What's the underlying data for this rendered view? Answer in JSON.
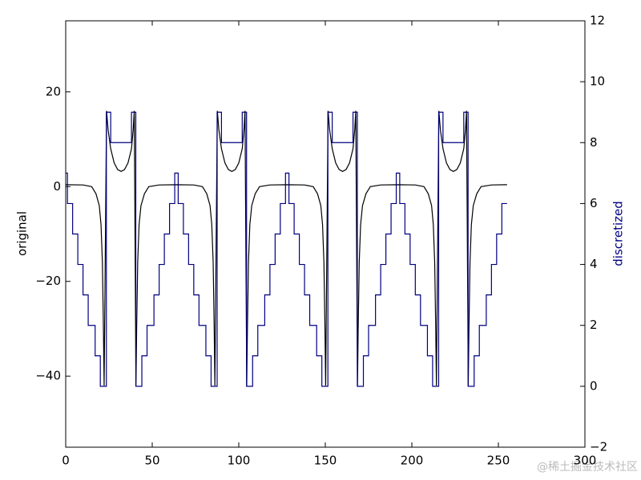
{
  "chart_data": {
    "type": "line",
    "y_label": "original",
    "y2_label": "discretized",
    "y2_label_color": "#000080",
    "xlim": [
      0,
      300
    ],
    "xticks": [
      0,
      50,
      100,
      150,
      200,
      250,
      300
    ],
    "ylim": [
      -55,
      35
    ],
    "yticks": [
      {
        "value": -40,
        "label": "−40"
      },
      {
        "value": -20,
        "label": "−20"
      },
      0,
      20
    ],
    "y2lim": [
      -2,
      12
    ],
    "y2ticks": [
      {
        "value": -2,
        "label": "−2"
      },
      0,
      2,
      4,
      6,
      8,
      10,
      12
    ],
    "watermark": "@稀土掘金技术社区",
    "series": [
      {
        "color": "#000000",
        "x": [
          0,
          10,
          15,
          17.5,
          19.4,
          20.4,
          21.2,
          21.8,
          22.2,
          23.6,
          24.5,
          26,
          28,
          30,
          32,
          34,
          36,
          38,
          39,
          39.6,
          40.6,
          41,
          41.6,
          42.4,
          43.5,
          45.5,
          48,
          54,
          64,
          74,
          79,
          81.5,
          83.4,
          84.4,
          85.2,
          85.8,
          86.2,
          87.6,
          88.5,
          90,
          92,
          94,
          96,
          98,
          100,
          102,
          103,
          103.6,
          104.6,
          105,
          105.6,
          106.4,
          107.5,
          109.5,
          112,
          118,
          128,
          138,
          143,
          145.5,
          147.4,
          148.4,
          149.2,
          149.8,
          150.2,
          151.6,
          152.5,
          154,
          156,
          158,
          160,
          162,
          164,
          166,
          167,
          167.6,
          168.6,
          169,
          169.6,
          170.4,
          171.5,
          173.5,
          176,
          182,
          192,
          202,
          207,
          209.5,
          211.4,
          212.4,
          213.2,
          213.8,
          214.2,
          215.6,
          216.5,
          218,
          220,
          222,
          224,
          226,
          228,
          230,
          231,
          231.6,
          232.6,
          233,
          233.6,
          234.4,
          235.5,
          237.5,
          240,
          246,
          255
        ],
        "values": [
          0.4,
          0.35,
          0,
          -1.5,
          -4,
          -8,
          -16,
          -30,
          -42,
          16,
          12,
          8,
          5,
          3.6,
          3.2,
          3.6,
          5,
          8,
          12,
          16,
          -42,
          -30,
          -16,
          -8,
          -4,
          -1.5,
          0,
          0.35,
          0.4,
          0.35,
          0,
          -1.5,
          -4,
          -8,
          -16,
          -30,
          -42,
          16,
          12,
          8,
          5,
          3.6,
          3.2,
          3.6,
          5,
          8,
          12,
          16,
          -42,
          -30,
          -16,
          -8,
          -4,
          -1.5,
          0,
          0.35,
          0.4,
          0.35,
          0,
          -1.5,
          -4,
          -8,
          -16,
          -30,
          -42,
          16,
          12,
          8,
          5,
          3.6,
          3.2,
          3.6,
          5,
          8,
          12,
          16,
          -42,
          -30,
          -16,
          -8,
          -4,
          -1.5,
          0,
          0.35,
          0.4,
          0.35,
          0,
          -1.5,
          -4,
          -8,
          -16,
          -30,
          -42,
          16,
          12,
          8,
          5,
          3.6,
          3.2,
          3.6,
          5,
          8,
          12,
          16,
          -42,
          -30,
          -16,
          -8,
          -4,
          -1.5,
          0,
          0.35,
          0.4
        ]
      },
      {
        "color": "#000080",
        "axis": "y2",
        "drawstyle": "steps-post",
        "x": [
          0,
          1,
          4,
          7,
          10,
          13,
          17,
          20,
          23.5,
          26,
          38,
          40.5,
          44,
          47,
          51,
          54,
          57,
          60,
          63,
          64,
          65,
          68,
          71,
          74,
          77,
          81,
          84,
          87.5,
          90,
          102,
          104.5,
          108,
          111,
          115,
          118,
          121,
          124,
          127,
          128,
          129,
          132,
          135,
          138,
          141,
          145,
          148,
          151.5,
          154,
          166,
          168.5,
          172,
          175,
          179,
          182,
          185,
          188,
          191,
          192,
          193,
          196,
          199,
          202,
          205,
          209,
          212,
          215.5,
          218,
          230,
          232.5,
          236,
          239,
          243,
          246,
          249,
          252,
          255
        ],
        "values": [
          7,
          6,
          5,
          4,
          3,
          2,
          1,
          0,
          9,
          8,
          9,
          0,
          1,
          2,
          3,
          4,
          5,
          6,
          7,
          7,
          6,
          5,
          4,
          3,
          2,
          1,
          0,
          9,
          8,
          9,
          0,
          1,
          2,
          3,
          4,
          5,
          6,
          7,
          7,
          6,
          5,
          4,
          3,
          2,
          1,
          0,
          9,
          8,
          9,
          0,
          1,
          2,
          3,
          4,
          5,
          6,
          7,
          7,
          6,
          5,
          4,
          3,
          2,
          1,
          0,
          9,
          8,
          9,
          0,
          1,
          2,
          3,
          4,
          5,
          6,
          6
        ]
      }
    ]
  }
}
